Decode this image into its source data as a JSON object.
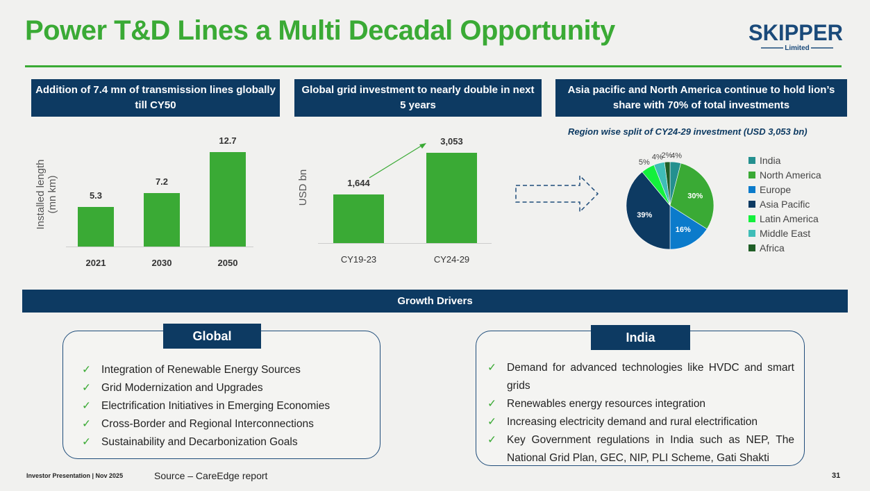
{
  "title": "Power T&D Lines a Multi Decadal Opportunity",
  "logo": {
    "name": "SKIPPER",
    "sub": "Limited"
  },
  "headers": [
    "Addition of 7.4 mn of transmission lines globally till CY50",
    "Global grid investment to nearly double in next 5 years",
    "Asia pacific and North America continue to hold lion’s share with 70% of total investments"
  ],
  "chart_data": [
    {
      "type": "bar",
      "categories": [
        "2021",
        "2030",
        "2050"
      ],
      "values": [
        5.3,
        7.2,
        12.7
      ],
      "labels": [
        "5.3",
        "7.2",
        "12.7"
      ],
      "ylabel": "Installed length (mn km)",
      "color": "#3aaa35",
      "ylim": [
        0,
        13.5
      ]
    },
    {
      "type": "bar",
      "categories": [
        "CY19-23",
        "CY24-29"
      ],
      "values": [
        1644,
        3053
      ],
      "labels": [
        "1,644",
        "3,053"
      ],
      "ylabel": "USD bn",
      "color": "#3aaa35",
      "ylim": [
        0,
        3250
      ]
    },
    {
      "type": "pie",
      "title": "Region wise split of CY24-29 investment (USD 3,053 bn)",
      "legend": "right",
      "slices": [
        {
          "name": "India",
          "value": 4,
          "label": "4%",
          "color": "#24908f"
        },
        {
          "name": "North America",
          "value": 30,
          "label": "30%",
          "color": "#3aaa35"
        },
        {
          "name": "Europe",
          "value": 16,
          "label": "16%",
          "color": "#0b7bcb"
        },
        {
          "name": "Asia Pacific",
          "value": 39,
          "label": "39%",
          "color": "#0d3a62"
        },
        {
          "name": "Latin America",
          "value": 5,
          "label": "5%",
          "color": "#14f03c"
        },
        {
          "name": "Middle East",
          "value": 4,
          "label": "4%",
          "color": "#3fbdb7"
        },
        {
          "name": "Africa",
          "value": 2,
          "label": "2%",
          "color": "#1f5e26"
        }
      ]
    }
  ],
  "growth_drivers": "Growth Drivers",
  "global": {
    "title": "Global",
    "items": [
      "Integration of Renewable Energy Sources",
      "Grid Modernization and Upgrades",
      "Electrification Initiatives in Emerging Economies",
      "Cross-Border and Regional Interconnections",
      "Sustainability and Decarbonization Goals"
    ]
  },
  "india": {
    "title": "India",
    "items": [
      "Demand for advanced technologies like HVDC and smart grids",
      "Renewables energy resources integration",
      "Increasing electricity demand and rural electrification",
      "Key Government regulations in India such as NEP,  The National Grid Plan, GEC, NIP, PLI Scheme, Gati Shakti"
    ]
  },
  "footer": {
    "left": "Investor Presentation | Nov 2025",
    "source": "Source – CareEdge report",
    "page": "31"
  }
}
